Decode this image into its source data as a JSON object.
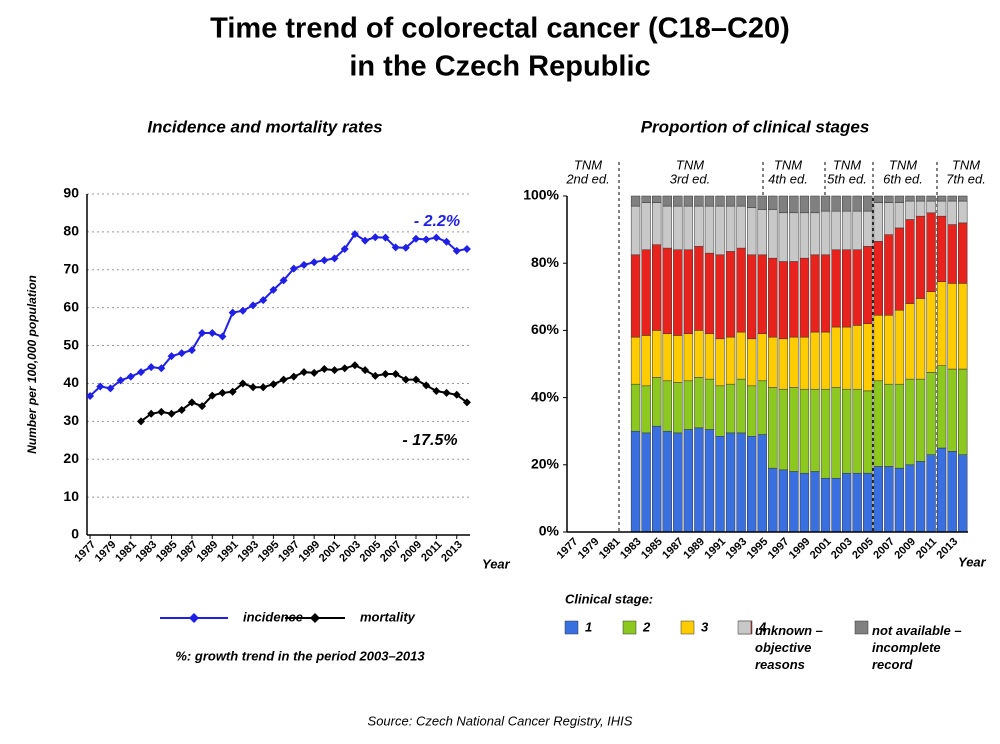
{
  "title": [
    "Time trend of colorectal cancer (C18–C20)",
    "in the Czech Republic"
  ],
  "source": "Source: Czech National Cancer Registry, IHIS",
  "chart_data": [
    {
      "type": "line",
      "title": "Incidence and mortality rates",
      "y_label": "Number per 100,000 population",
      "x_label": "Year",
      "x": [
        1977,
        1978,
        1979,
        1980,
        1981,
        1982,
        1983,
        1984,
        1985,
        1986,
        1987,
        1988,
        1989,
        1990,
        1991,
        1992,
        1993,
        1994,
        1995,
        1996,
        1997,
        1998,
        1999,
        2000,
        2001,
        2002,
        2003,
        2004,
        2005,
        2006,
        2007,
        2008,
        2009,
        2010,
        2011,
        2012,
        2013,
        2014
      ],
      "xlim": [
        1976.7,
        2014.3
      ],
      "xticks": [
        1977,
        1979,
        1981,
        1983,
        1985,
        1987,
        1989,
        1991,
        1993,
        1995,
        1997,
        1999,
        2001,
        2003,
        2005,
        2007,
        2009,
        2011,
        2013
      ],
      "ylim": [
        0,
        90
      ],
      "yticks": [
        0,
        10,
        20,
        30,
        40,
        50,
        60,
        70,
        80,
        90
      ],
      "grid": true,
      "series": [
        {
          "name": "incidence",
          "color": "#1f1fe6",
          "values": [
            36.7,
            39.2,
            38.7,
            40.8,
            41.8,
            43.0,
            44.3,
            44.0,
            47.2,
            48.0,
            48.8,
            53.3,
            53.3,
            52.4,
            58.7,
            59.2,
            60.6,
            62.0,
            64.7,
            67.2,
            70.3,
            71.3,
            72.0,
            72.5,
            73.0,
            75.5,
            79.4,
            77.7,
            78.6,
            78.5,
            75.9,
            75.8,
            78.2,
            78.0,
            78.5,
            77.4,
            75.0,
            75.5
          ]
        },
        {
          "name": "mortality",
          "color": "#000000",
          "values": [
            null,
            null,
            null,
            null,
            null,
            30.0,
            32.0,
            32.5,
            32.0,
            33.0,
            35.0,
            34.0,
            36.8,
            37.5,
            37.8,
            40.0,
            39.0,
            39.0,
            39.8,
            41.0,
            41.8,
            43.0,
            42.8,
            43.8,
            43.5,
            44.0,
            44.8,
            43.5,
            42.0,
            42.5,
            42.5,
            41.0,
            41.0,
            39.5,
            38.0,
            37.5,
            37.0,
            35.0
          ]
        }
      ],
      "annotations": [
        {
          "text": "- 2.2%",
          "color": "#1f1fe6"
        },
        {
          "text": "- 17.5%",
          "color": "#000000"
        }
      ],
      "note": "%: growth trend in the period 2003–2013"
    },
    {
      "type": "stacked_bar",
      "title": "Proportion of clinical stages",
      "x_label": "Year",
      "categories": [
        "1977",
        null,
        "1979",
        null,
        "1981",
        null,
        "1983",
        null,
        "1985",
        null,
        "1987",
        null,
        "1989",
        null,
        "1991",
        null,
        "1993",
        null,
        "1995",
        null,
        "1997",
        null,
        "1999",
        null,
        "2001",
        null,
        "2003",
        null,
        "2005",
        null,
        "2007",
        null,
        "2009",
        null,
        "2011",
        null,
        "2013",
        null
      ],
      "ylim": [
        0,
        100
      ],
      "yticks": [
        {
          "value": 0,
          "label": "0%"
        },
        {
          "value": 20,
          "label": "20%"
        },
        {
          "value": 40,
          "label": "40%"
        },
        {
          "value": 60,
          "label": "60%"
        },
        {
          "value": 80,
          "label": "80%"
        },
        {
          "value": 100,
          "label": "100%"
        }
      ],
      "legend_title": "Clinical stage:",
      "eras": [
        [
          "TNM",
          "2nd ed."
        ],
        [
          "TNM",
          "3rd ed."
        ],
        [
          "TNM",
          "4th ed."
        ],
        [
          "TNM",
          "5th ed."
        ],
        [
          "TNM",
          "6th ed."
        ],
        [
          "TNM",
          "7th ed."
        ]
      ],
      "series": [
        {
          "name": "1",
          "color": "#3a6fe0",
          "values": [
            null,
            null,
            null,
            null,
            null,
            null,
            30,
            29.5,
            31.5,
            30,
            29.5,
            30.5,
            31,
            30.5,
            28.5,
            29.5,
            29.5,
            28.5,
            29,
            19,
            18.5,
            18,
            17.5,
            18,
            16,
            16,
            17.5,
            17.5,
            17.5,
            19.5,
            19.5,
            19,
            20,
            21,
            23,
            25,
            24,
            23
          ]
        },
        {
          "name": "2",
          "color": "#8cc820",
          "values": [
            null,
            null,
            null,
            null,
            null,
            null,
            14,
            14,
            14.5,
            15,
            15,
            14.5,
            15,
            15,
            15,
            14.5,
            16,
            15,
            16,
            24,
            24,
            25,
            25,
            24.5,
            26.5,
            27,
            25,
            25,
            24.5,
            25.5,
            24.5,
            25,
            25.5,
            24.5,
            24.5,
            24.5,
            24.5,
            25.5
          ]
        },
        {
          "name": "3",
          "color": "#ffcc00",
          "values": [
            null,
            null,
            null,
            null,
            null,
            null,
            14,
            15,
            14,
            14,
            14,
            14,
            14,
            13.5,
            14,
            14,
            14,
            14,
            14,
            15,
            15,
            15,
            15.5,
            17,
            17,
            18,
            18.5,
            19,
            20,
            19.5,
            20.5,
            22,
            22.5,
            24,
            24,
            25,
            25.5,
            25.5
          ]
        },
        {
          "name": "4",
          "color": "#e8221c",
          "values": [
            null,
            null,
            null,
            null,
            null,
            null,
            24.5,
            25.5,
            25.5,
            25.5,
            25.5,
            25,
            25,
            24,
            25,
            25.5,
            25,
            25,
            23.5,
            23.5,
            23,
            22.5,
            23.5,
            23,
            23,
            23,
            23,
            22.5,
            23,
            22,
            24,
            24.5,
            25,
            24.5,
            23.5,
            19.5,
            17.5,
            18
          ]
        },
        {
          "name": "unknown – objective reasons",
          "color": "#c8c8c8",
          "values": [
            null,
            null,
            null,
            null,
            null,
            null,
            14.5,
            14,
            12.5,
            12.5,
            13,
            13,
            12,
            14,
            14.5,
            13.5,
            12.5,
            14,
            13.5,
            14.5,
            14.5,
            14.5,
            13.5,
            12.5,
            13,
            11.5,
            11.5,
            11.5,
            10.5,
            11.5,
            9.5,
            7.5,
            5.5,
            4.5,
            3.5,
            4.5,
            7,
            6.5
          ]
        },
        {
          "name": "not available – incomplete record",
          "color": "#808080",
          "values": [
            null,
            null,
            null,
            null,
            null,
            null,
            3,
            2,
            2,
            3,
            3,
            3,
            3,
            3,
            3,
            3,
            3,
            3.5,
            4,
            4,
            5,
            5,
            5,
            5,
            4.5,
            4.5,
            4.5,
            4.5,
            4.5,
            2,
            2,
            2,
            1.5,
            1.5,
            1.5,
            1.5,
            1.5,
            1.5
          ]
        }
      ]
    }
  ]
}
